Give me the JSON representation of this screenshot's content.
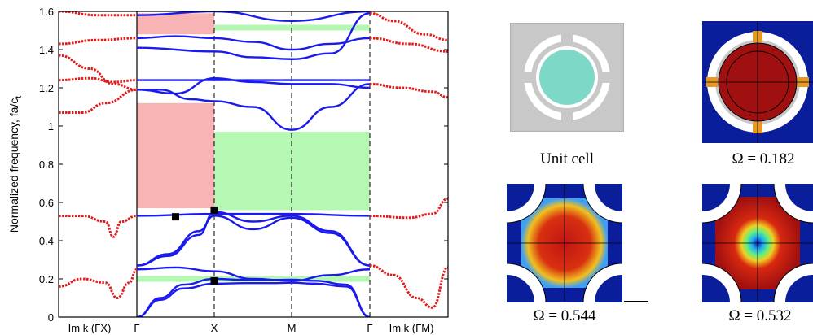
{
  "chart_data": {
    "type": "line",
    "ylabel": "Normalized frequency, fa/c",
    "ylabel_subscript": "t",
    "ylim": [
      0,
      1.6
    ],
    "yticks": [
      "0",
      "0.2",
      "0.4",
      "0.6",
      "0.8",
      "1",
      "1.2",
      "1.4",
      "1.6"
    ],
    "xtick_labels": [
      "Im k (ΓX)",
      "Γ",
      "X",
      "M",
      "Γ",
      "Im k (ΓM)"
    ],
    "grid": false,
    "gaps": [
      {
        "color": "#f8b4b4",
        "x_from": "Γ",
        "x_to": "X",
        "y": [
          1.48,
          1.59
        ]
      },
      {
        "color": "#f8b4b4",
        "x_from": "Γ",
        "x_to": "X",
        "y": [
          0.57,
          1.12
        ]
      },
      {
        "color": "#b4f8b4",
        "x_from": "X",
        "x_to": "Γ",
        "y": [
          1.5,
          1.53
        ]
      },
      {
        "color": "#b4f8b4",
        "x_from": "X",
        "x_to": "Γ",
        "y": [
          0.56,
          0.97
        ]
      },
      {
        "color": "#b4f8b4",
        "x_from": "Γ",
        "x_to": "Γ",
        "y": [
          0.185,
          0.215
        ]
      }
    ],
    "series": [
      {
        "color": "#1a1aee",
        "points": [
          [
            1,
            0
          ],
          [
            1.3,
            0.09
          ],
          [
            1.6,
            0.15
          ],
          [
            2,
            0.175
          ],
          [
            2.4,
            0.178
          ],
          [
            2.8,
            0.178
          ],
          [
            3,
            0.18
          ],
          [
            3.3,
            0.175
          ],
          [
            3.7,
            0.16
          ],
          [
            4,
            0
          ]
        ]
      },
      {
        "color": "#1a1aee",
        "points": [
          [
            1,
            0
          ],
          [
            1.3,
            0.1
          ],
          [
            1.6,
            0.17
          ],
          [
            2,
            0.2
          ],
          [
            2.4,
            0.195
          ],
          [
            2.8,
            0.195
          ],
          [
            3,
            0.196
          ],
          [
            3.3,
            0.19
          ],
          [
            3.7,
            0.17
          ],
          [
            4,
            0
          ]
        ]
      },
      {
        "color": "#1a1aee",
        "points": [
          [
            1,
            0.25
          ],
          [
            1.5,
            0.26
          ],
          [
            2,
            0.24
          ],
          [
            2.5,
            0.2
          ],
          [
            3,
            0.19
          ],
          [
            3.5,
            0.22
          ],
          [
            4,
            0.25
          ]
        ]
      },
      {
        "color": "#1a1aee",
        "points": [
          [
            1,
            0.27
          ],
          [
            1.4,
            0.33
          ],
          [
            1.8,
            0.45
          ],
          [
            2,
            0.53
          ],
          [
            2.5,
            0.46
          ],
          [
            3,
            0.52
          ],
          [
            3.5,
            0.44
          ],
          [
            4,
            0.27
          ]
        ]
      },
      {
        "color": "#1a1aee",
        "points": [
          [
            1,
            0.27
          ],
          [
            1.4,
            0.32
          ],
          [
            1.8,
            0.43
          ],
          [
            2,
            0.55
          ],
          [
            2.5,
            0.5
          ],
          [
            3,
            0.53
          ],
          [
            3.5,
            0.45
          ],
          [
            4,
            0.27
          ]
        ]
      },
      {
        "color": "#1a1aee",
        "points": [
          [
            1,
            0.53
          ],
          [
            2,
            0.54
          ],
          [
            3,
            0.54
          ],
          [
            4,
            0.53
          ]
        ]
      },
      {
        "color": "#1a1aee",
        "points": [
          [
            1,
            1.19
          ],
          [
            1.3,
            1.19
          ],
          [
            1.7,
            1.14
          ],
          [
            2,
            1.13
          ],
          [
            2.5,
            1.1
          ],
          [
            3,
            0.98
          ],
          [
            3.5,
            1.1
          ],
          [
            4,
            1.22
          ]
        ]
      },
      {
        "color": "#1a1aee",
        "points": [
          [
            1,
            1.24
          ],
          [
            2,
            1.24
          ],
          [
            3,
            1.24
          ],
          [
            4,
            1.24
          ]
        ]
      },
      {
        "color": "#1a1aee",
        "points": [
          [
            1,
            1.19
          ],
          [
            1.5,
            1.17
          ],
          [
            2,
            1.25
          ],
          [
            2.5,
            1.23
          ],
          [
            3,
            1.22
          ],
          [
            3.5,
            1.22
          ],
          [
            4,
            1.2
          ]
        ]
      },
      {
        "color": "#1a1aee",
        "points": [
          [
            1,
            1.41
          ],
          [
            2,
            1.39
          ],
          [
            2.5,
            1.36
          ],
          [
            3,
            1.35
          ],
          [
            3.5,
            1.38
          ],
          [
            4,
            1.59
          ]
        ]
      },
      {
        "color": "#1a1aee",
        "points": [
          [
            1,
            1.46
          ],
          [
            1.5,
            1.47
          ],
          [
            2,
            1.46
          ],
          [
            2.5,
            1.44
          ],
          [
            3,
            1.4
          ],
          [
            3.5,
            1.43
          ],
          [
            4,
            1.46
          ]
        ]
      },
      {
        "color": "#1a1aee",
        "points": [
          [
            1,
            1.58
          ],
          [
            2,
            1.6
          ],
          [
            3,
            1.55
          ],
          [
            4,
            1.6
          ]
        ]
      },
      {
        "color": "#e21a1a",
        "points": [
          [
            0,
            0.53
          ],
          [
            0.3,
            0.53
          ],
          [
            0.6,
            0.5
          ],
          [
            0.7,
            0.42
          ],
          [
            0.8,
            0.5
          ],
          [
            1,
            0.53
          ]
        ]
      },
      {
        "color": "#e21a1a",
        "points": [
          [
            0,
            0.16
          ],
          [
            0.3,
            0.2
          ],
          [
            0.6,
            0.18
          ],
          [
            0.75,
            0.1
          ],
          [
            0.9,
            0.18
          ],
          [
            1,
            0.25
          ]
        ]
      },
      {
        "color": "#e21a1a",
        "points": [
          [
            0,
            1.07
          ],
          [
            0.3,
            1.07
          ],
          [
            0.6,
            1.12
          ],
          [
            1,
            1.19
          ]
        ]
      },
      {
        "color": "#e21a1a",
        "points": [
          [
            0,
            1.24
          ],
          [
            0.4,
            1.25
          ],
          [
            0.7,
            1.23
          ],
          [
            1,
            1.24
          ]
        ]
      },
      {
        "color": "#e21a1a",
        "points": [
          [
            0,
            1.37
          ],
          [
            0.4,
            1.3
          ],
          [
            0.7,
            1.22
          ],
          [
            1,
            1.19
          ]
        ]
      },
      {
        "color": "#e21a1a",
        "points": [
          [
            0,
            1.43
          ],
          [
            0.5,
            1.45
          ],
          [
            1,
            1.46
          ]
        ]
      },
      {
        "color": "#e21a1a",
        "points": [
          [
            0,
            1.6
          ],
          [
            0.5,
            1.58
          ],
          [
            1,
            1.58
          ]
        ]
      },
      {
        "color": "#e21a1a",
        "points": [
          [
            4,
            0.27
          ],
          [
            4.3,
            0.22
          ],
          [
            4.6,
            0.1
          ],
          [
            4.8,
            0.05
          ],
          [
            5,
            0.26
          ]
        ]
      },
      {
        "color": "#e21a1a",
        "points": [
          [
            4,
            0.53
          ],
          [
            4.5,
            0.52
          ],
          [
            4.8,
            0.54
          ],
          [
            5,
            0.62
          ]
        ]
      },
      {
        "color": "#e21a1a",
        "points": [
          [
            4,
            1.22
          ],
          [
            4.4,
            1.2
          ],
          [
            4.8,
            1.18
          ],
          [
            5,
            1.15
          ]
        ]
      },
      {
        "color": "#e21a1a",
        "points": [
          [
            4,
            1.46
          ],
          [
            4.5,
            1.43
          ],
          [
            5,
            1.39
          ]
        ]
      },
      {
        "color": "#e21a1a",
        "points": [
          [
            4,
            1.59
          ],
          [
            4.3,
            1.55
          ],
          [
            4.7,
            1.48
          ],
          [
            5,
            1.45
          ]
        ]
      }
    ],
    "markers": [
      {
        "x": 1.5,
        "y": 0.525
      },
      {
        "x": 2,
        "y": 0.56
      },
      {
        "x": 2,
        "y": 0.19
      }
    ]
  },
  "panels": [
    {
      "caption": "Unit cell"
    },
    {
      "caption": "Ω = 0.182"
    },
    {
      "caption": "Ω = 0.544"
    },
    {
      "caption": "Ω = 0.532"
    }
  ],
  "colors": {
    "background": "#ffffff",
    "cell_gray": "#c8c8c8",
    "inclusion_teal": "#7ed8c8",
    "field_blue": "#0a1e9c",
    "field_red": "#a01010"
  }
}
